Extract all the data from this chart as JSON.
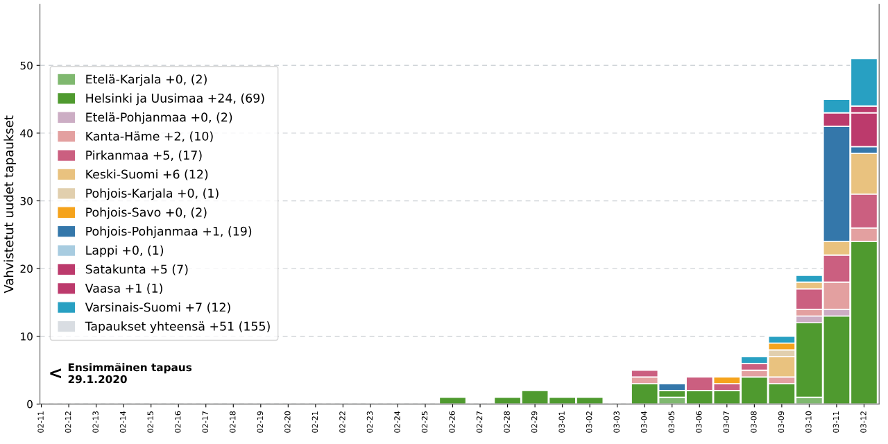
{
  "chart_data": {
    "type": "bar",
    "stacked": true,
    "ylabel": "Vahvistetut uudet tapaukset",
    "categories": [
      "02-11",
      "02-12",
      "02-13",
      "02-14",
      "02-15",
      "02-16",
      "02-17",
      "02-18",
      "02-19",
      "02-20",
      "02-21",
      "02-22",
      "02-23",
      "02-24",
      "02-25",
      "02-26",
      "02-27",
      "02-28",
      "02-29",
      "03-01",
      "03-02",
      "03-03",
      "03-04",
      "03-05",
      "03-06",
      "03-07",
      "03-08",
      "03-09",
      "03-10",
      "03-11",
      "03-12"
    ],
    "series": [
      {
        "name": "Etelä-Karjala +0, (2)",
        "color": "#7fb86f",
        "values": [
          0,
          0,
          0,
          0,
          0,
          0,
          0,
          0,
          0,
          0,
          0,
          0,
          0,
          0,
          0,
          0,
          0,
          0,
          0,
          0,
          0,
          0,
          0,
          1,
          0,
          0,
          0,
          0,
          1,
          0,
          0
        ]
      },
      {
        "name": "Helsinki ja Uusimaa +24, (69)",
        "color": "#4f9a2f",
        "values": [
          0,
          0,
          0,
          0,
          0,
          0,
          0,
          0,
          0,
          0,
          0,
          0,
          0,
          0,
          0,
          1,
          0,
          1,
          2,
          1,
          1,
          0,
          3,
          1,
          2,
          2,
          4,
          3,
          11,
          13,
          24
        ]
      },
      {
        "name": "Etelä-Pohjanmaa +0, (2)",
        "color": "#ccadc4",
        "values": [
          0,
          0,
          0,
          0,
          0,
          0,
          0,
          0,
          0,
          0,
          0,
          0,
          0,
          0,
          0,
          0,
          0,
          0,
          0,
          0,
          0,
          0,
          0,
          0,
          0,
          0,
          0,
          0,
          1,
          1,
          0
        ]
      },
      {
        "name": "Kanta-Häme +2, (10)",
        "color": "#e3a0a0",
        "values": [
          0,
          0,
          0,
          0,
          0,
          0,
          0,
          0,
          0,
          0,
          0,
          0,
          0,
          0,
          0,
          0,
          0,
          0,
          0,
          0,
          0,
          0,
          1,
          0,
          0,
          0,
          1,
          1,
          1,
          4,
          2
        ]
      },
      {
        "name": "Pirkanmaa +5, (17)",
        "color": "#cb5f80",
        "values": [
          0,
          0,
          0,
          0,
          0,
          0,
          0,
          0,
          0,
          0,
          0,
          0,
          0,
          0,
          0,
          0,
          0,
          0,
          0,
          0,
          0,
          0,
          1,
          0,
          2,
          1,
          1,
          0,
          3,
          4,
          5
        ]
      },
      {
        "name": "Keski-Suomi +6 (12)",
        "color": "#e9c27f",
        "values": [
          0,
          0,
          0,
          0,
          0,
          0,
          0,
          0,
          0,
          0,
          0,
          0,
          0,
          0,
          0,
          0,
          0,
          0,
          0,
          0,
          0,
          0,
          0,
          0,
          0,
          0,
          0,
          3,
          1,
          2,
          6
        ]
      },
      {
        "name": "Pohjois-Karjala +0, (1)",
        "color": "#e1cfae",
        "values": [
          0,
          0,
          0,
          0,
          0,
          0,
          0,
          0,
          0,
          0,
          0,
          0,
          0,
          0,
          0,
          0,
          0,
          0,
          0,
          0,
          0,
          0,
          0,
          0,
          0,
          0,
          0,
          1,
          0,
          0,
          0
        ]
      },
      {
        "name": "Pohjois-Savo +0, (2)",
        "color": "#f5a31c",
        "values": [
          0,
          0,
          0,
          0,
          0,
          0,
          0,
          0,
          0,
          0,
          0,
          0,
          0,
          0,
          0,
          0,
          0,
          0,
          0,
          0,
          0,
          0,
          0,
          0,
          0,
          1,
          0,
          1,
          0,
          0,
          0
        ]
      },
      {
        "name": "Pohjois-Pohjanmaa +1, (19)",
        "color": "#3477aa",
        "values": [
          0,
          0,
          0,
          0,
          0,
          0,
          0,
          0,
          0,
          0,
          0,
          0,
          0,
          0,
          0,
          0,
          0,
          0,
          0,
          0,
          0,
          0,
          0,
          1,
          0,
          0,
          0,
          0,
          0,
          17,
          1
        ]
      },
      {
        "name": "Lappi +0, (1)",
        "color": "#a8cce0",
        "values": [
          0,
          0,
          0,
          0,
          0,
          0,
          0,
          0,
          0,
          0,
          0,
          0,
          0,
          0,
          0,
          0,
          0,
          0,
          0,
          0,
          0,
          0,
          0,
          0,
          0,
          0,
          0,
          0,
          0,
          0,
          0
        ]
      },
      {
        "name": "Satakunta +5 (7)",
        "color": "#bc3a6c",
        "values": [
          0,
          0,
          0,
          0,
          0,
          0,
          0,
          0,
          0,
          0,
          0,
          0,
          0,
          0,
          0,
          0,
          0,
          0,
          0,
          0,
          0,
          0,
          0,
          0,
          0,
          0,
          0,
          0,
          0,
          2,
          5
        ]
      },
      {
        "name": "Vaasa +1 (1)",
        "color": "#bc3a6c",
        "values": [
          0,
          0,
          0,
          0,
          0,
          0,
          0,
          0,
          0,
          0,
          0,
          0,
          0,
          0,
          0,
          0,
          0,
          0,
          0,
          0,
          0,
          0,
          0,
          0,
          0,
          0,
          0,
          0,
          0,
          0,
          1
        ]
      },
      {
        "name": "Varsinais-Suomi +7 (12)",
        "color": "#28a0c2",
        "values": [
          0,
          0,
          0,
          0,
          0,
          0,
          0,
          0,
          0,
          0,
          0,
          0,
          0,
          0,
          0,
          0,
          0,
          0,
          0,
          0,
          0,
          0,
          0,
          0,
          0,
          0,
          1,
          1,
          1,
          2,
          7
        ]
      },
      {
        "name": "Tapaukset yhteensä +51 (155)",
        "color": "#d9dde2",
        "values": [
          null,
          null,
          null,
          null,
          null,
          null,
          null,
          null,
          null,
          null,
          null,
          null,
          null,
          null,
          null,
          null,
          null,
          null,
          null,
          null,
          null,
          null,
          null,
          null,
          null,
          null,
          null,
          null,
          null,
          null,
          null
        ]
      }
    ],
    "ylim": [
      0,
      59
    ],
    "yticks": [
      0,
      10,
      20,
      30,
      40,
      50
    ],
    "grid": "y",
    "legend": "top left",
    "annotations": [
      "<",
      "Ensimmäinen tapaus\n29.1.2020"
    ]
  }
}
